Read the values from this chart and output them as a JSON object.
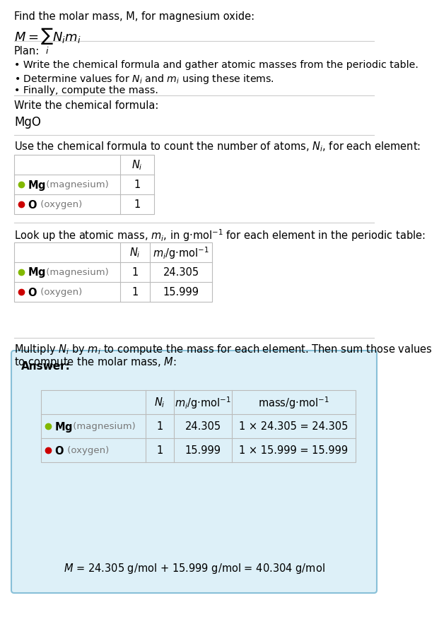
{
  "title_line1": "Find the molar mass, M, for magnesium oxide:",
  "title_formula": "$M = \\sum_i N_i m_i$",
  "plan_header": "Plan:",
  "plan_bullets": [
    "• Write the chemical formula and gather atomic masses from the periodic table.",
    "• Determine values for $N_i$ and $m_i$ using these items.",
    "• Finally, compute the mass."
  ],
  "formula_label": "Write the chemical formula:",
  "formula_value": "MgO",
  "table1_header": "Use the chemical formula to count the number of atoms, $N_i$, for each element:",
  "table2_header": "Look up the atomic mass, $m_i$, in g·mol$^{-1}$ for each element in the periodic table:",
  "table3_header_1": "Multiply $N_i$ by $m_i$ to compute the mass for each element. Then sum those values",
  "table3_header_2": "to compute the molar mass, $M$:",
  "answer_label": "Answer:",
  "elements": [
    {
      "symbol": "Mg",
      "name": "magnesium",
      "color": "#82b800",
      "N": 1,
      "m": 24.305
    },
    {
      "symbol": "O",
      "name": "oxygen",
      "color": "#cc0000",
      "N": 1,
      "m": 15.999
    }
  ],
  "final_eq": "$M$ = 24.305 g/mol + 15.999 g/mol = 40.304 g/mol",
  "answer_box_color": "#ddf0f8",
  "answer_box_border": "#88c0d8",
  "bg_color": "#ffffff",
  "text_color": "#000000",
  "gray_text": "#777777",
  "table_border_color": "#bbbbbb",
  "separator_color": "#cccccc"
}
